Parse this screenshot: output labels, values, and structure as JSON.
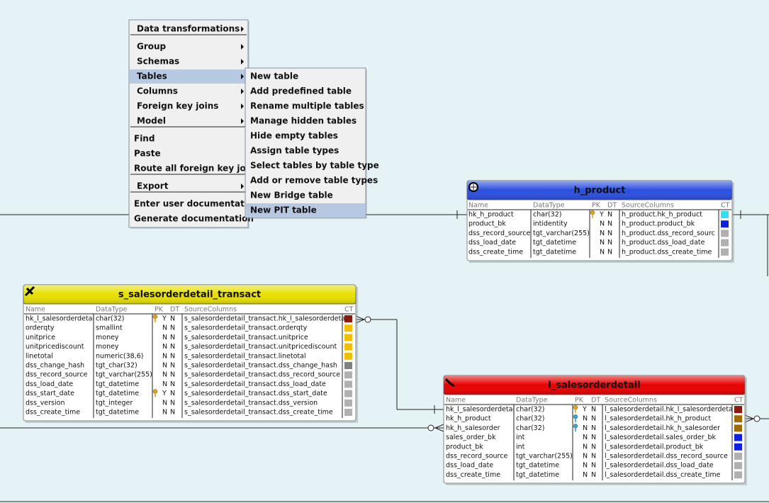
{
  "menu": {
    "groups": [
      {
        "items": [
          "Data transformations"
        ]
      },
      {
        "items": [
          "Group",
          "Schemas",
          "Tables",
          "Columns",
          "Foreign key joins",
          "Model"
        ]
      },
      {
        "items": [
          "Find",
          "Paste",
          "Route all foreign key joins"
        ]
      },
      {
        "items": [
          "Export"
        ]
      },
      {
        "items": [
          "Enter user documentation",
          "Generate documentation"
        ]
      }
    ]
  },
  "submenu": {
    "items": [
      "New table",
      "Add predefined table",
      "Rename multiple tables",
      "Manage hidden tables",
      "Hide empty tables",
      "Assign table types",
      "Select tables by table type",
      "Add or remove table types",
      "New Bridge table",
      "New PIT table"
    ]
  },
  "tables": [
    {
      "title": "h_product",
      "header_color": "#2b4fe0",
      "columns": [
        "Name",
        "DataType",
        "PK",
        "DT",
        "SourceColumns",
        "CT"
      ],
      "rows": [
        {
          "name": "hk_h_product",
          "type": "char(32)",
          "pk": "Y",
          "dt": "N",
          "source": "h_product.hk_h_product",
          "ct_color": "#33e0f0",
          "key": "primary"
        },
        {
          "name": "product_bk",
          "type": "intidentity",
          "pk": "N",
          "dt": "N",
          "source": "h_product.product_bk",
          "ct_color": "#1020e0"
        },
        {
          "name": "dss_record_source",
          "type": "tgt_varchar(255)",
          "pk": "N",
          "dt": "N",
          "source": "h_product.dss_record_sourc",
          "ct_color": "#b0b0b0"
        },
        {
          "name": "dss_load_date",
          "type": "tgt_datetime",
          "pk": "N",
          "dt": "N",
          "source": "h_product.dss_load_date",
          "ct_color": "#b0b0b0"
        },
        {
          "name": "dss_create_time",
          "type": "tgt_datetime",
          "pk": "N",
          "dt": "N",
          "source": "h_product.dss_create_time",
          "ct_color": "#b0b0b0"
        }
      ]
    },
    {
      "title": "s_salesorderdetail_transact",
      "header_color": "#e8e000",
      "columns": [
        "Name",
        "DataType",
        "PK",
        "DT",
        "SourceColumns",
        "CT"
      ],
      "rows": [
        {
          "name": "hk_l_salesorderdetai",
          "type": "char(32)",
          "pk": "Y",
          "dt": "N",
          "source": "s_salesorderdetail_transact.hk_l_salesorderdeta",
          "ct_color": "#8a1a10",
          "key": "primary"
        },
        {
          "name": "orderqty",
          "type": "smallint",
          "pk": "N",
          "dt": "N",
          "source": "s_salesorderdetail_transact.orderqty",
          "ct_color": "#f0c000"
        },
        {
          "name": "unitprice",
          "type": "money",
          "pk": "N",
          "dt": "N",
          "source": "s_salesorderdetail_transact.unitprice",
          "ct_color": "#f0c000"
        },
        {
          "name": "unitpricediscount",
          "type": "money",
          "pk": "N",
          "dt": "N",
          "source": "s_salesorderdetail_transact.unitpricediscount",
          "ct_color": "#f0c000"
        },
        {
          "name": "linetotal",
          "type": "numeric(38,6)",
          "pk": "N",
          "dt": "N",
          "source": "s_salesorderdetail_transact.linetotal",
          "ct_color": "#f0c000"
        },
        {
          "name": "dss_change_hash",
          "type": "tgt_char(32)",
          "pk": "N",
          "dt": "N",
          "source": "s_salesorderdetail_transact.dss_change_hash",
          "ct_color": "#808080"
        },
        {
          "name": "dss_record_source",
          "type": "tgt_varchar(255)",
          "pk": "N",
          "dt": "N",
          "source": "s_salesorderdetail_transact.dss_record_source",
          "ct_color": "#b0b0b0"
        },
        {
          "name": "dss_load_date",
          "type": "tgt_datetime",
          "pk": "N",
          "dt": "N",
          "source": "s_salesorderdetail_transact.dss_load_date",
          "ct_color": "#b0b0b0"
        },
        {
          "name": "dss_start_date",
          "type": "tgt_datetime",
          "pk": "Y",
          "dt": "N",
          "source": "s_salesorderdetail_transact.dss_start_date",
          "ct_color": "#b0b0b0",
          "key": "primary"
        },
        {
          "name": "dss_version",
          "type": "tgt_integer",
          "pk": "N",
          "dt": "N",
          "source": "s_salesorderdetail_transact.dss_version",
          "ct_color": "#b0b0b0"
        },
        {
          "name": "dss_create_time",
          "type": "tgt_datetime",
          "pk": "N",
          "dt": "N",
          "source": "s_salesorderdetail_transact.dss_create_time",
          "ct_color": "#b0b0b0"
        }
      ]
    },
    {
      "title": "l_salesorderdetail",
      "header_color": "#e80000",
      "columns": [
        "Name",
        "DataType",
        "PK",
        "DT",
        "SourceColumns",
        "CT"
      ],
      "rows": [
        {
          "name": "hk_l_salesorderdetai",
          "type": "char(32)",
          "pk": "Y",
          "dt": "N",
          "source": "l_salesorderdetail.hk_l_salesorderdeta",
          "ct_color": "#8a1a10",
          "key": "primary"
        },
        {
          "name": "hk_h_product",
          "type": "char(32)",
          "pk": "N",
          "dt": "N",
          "source": "l_salesorderdetail.hk_h_product",
          "ct_color": "#a06a00",
          "key": "foreign"
        },
        {
          "name": "hk_h_salesorder",
          "type": "char(32)",
          "pk": "N",
          "dt": "N",
          "source": "l_salesorderdetail.hk_h_salesorder",
          "ct_color": "#a06a00",
          "key": "foreign"
        },
        {
          "name": "sales_order_bk",
          "type": "int",
          "pk": "N",
          "dt": "N",
          "source": "l_salesorderdetail.sales_order_bk",
          "ct_color": "#1020e0"
        },
        {
          "name": "product_bk",
          "type": "int",
          "pk": "N",
          "dt": "N",
          "source": "l_salesorderdetail.product_bk",
          "ct_color": "#1020e0"
        },
        {
          "name": "dss_record_source",
          "type": "tgt_varchar(255)",
          "pk": "N",
          "dt": "N",
          "source": "l_salesorderdetail.dss_record_source",
          "ct_color": "#b0b0b0"
        },
        {
          "name": "dss_load_date",
          "type": "tgt_datetime",
          "pk": "N",
          "dt": "N",
          "source": "l_salesorderdetail.dss_load_date",
          "ct_color": "#b0b0b0"
        },
        {
          "name": "dss_create_time",
          "type": "tgt_datetime",
          "pk": "N",
          "dt": "N",
          "source": "l_salesorderdetail.dss_create_time",
          "ct_color": "#b0b0b0"
        }
      ]
    }
  ]
}
